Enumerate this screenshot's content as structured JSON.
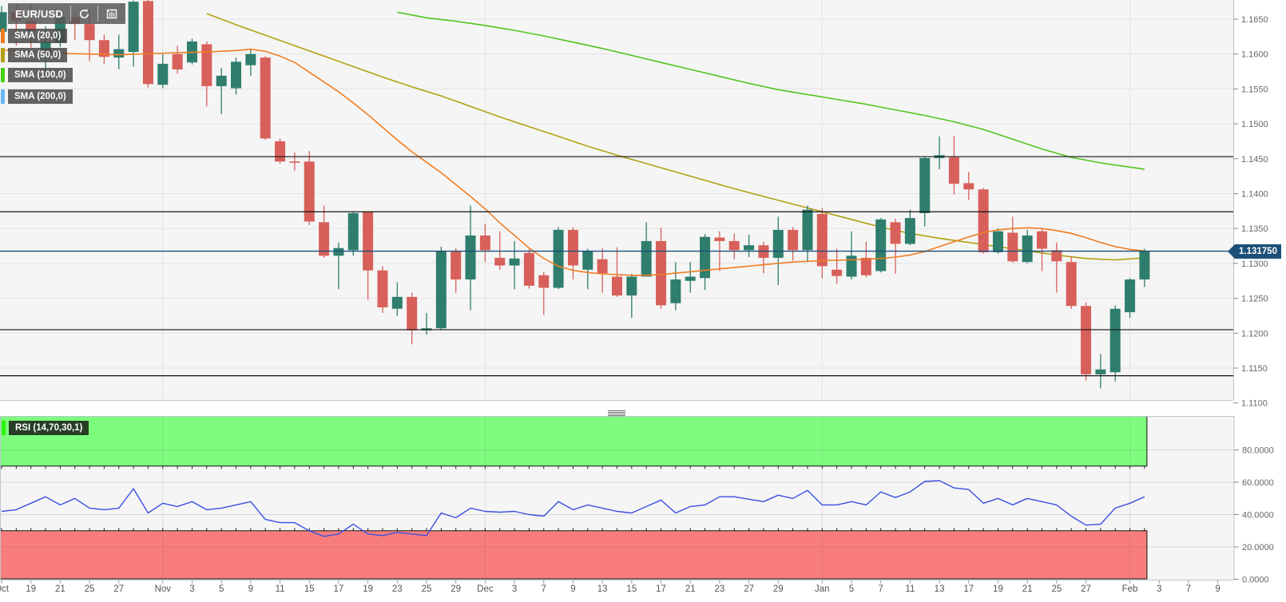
{
  "toolbar": {
    "symbol": "EUR/USD",
    "icons": [
      "refresh-icon",
      "history-icon"
    ]
  },
  "legend": [
    {
      "label": "SMA (20,0)",
      "color": "#f07d23"
    },
    {
      "label": "SMA (50,0)",
      "color": "#b3a012"
    },
    {
      "label": "SMA (100,0)",
      "color": "#46cf10"
    },
    {
      "label": "SMA (200,0)",
      "color": "#68b6f2"
    }
  ],
  "rsi_panel": {
    "label": "RSI (14,70,30,1)",
    "accent_color": "#2bf406",
    "overbought": 70,
    "oversold": 30,
    "axis_ticks": [
      "80.0000",
      "60.0000",
      "40.0000",
      "20.0000",
      "0.0000"
    ],
    "axis_tick_values": [
      80,
      60,
      40,
      20,
      0
    ]
  },
  "price_axis": {
    "ticks": [
      "1.1650",
      "1.1600",
      "1.1550",
      "1.1500",
      "1.1450",
      "1.1400",
      "1.1350",
      "1.1300",
      "1.1250",
      "1.1200",
      "1.1150",
      "1.1100"
    ],
    "current_price": "1.131750"
  },
  "colors": {
    "up": "#2f7e6d",
    "down": "#d8605a",
    "sma20": "#f07d23",
    "sma50": "#b3a012",
    "sma100": "#53c41e",
    "sma200": "#68b6f2",
    "level_line": "#111111",
    "price_line": "#1b4f77",
    "badge_bg": "#1b4f77",
    "rsi_line": "#3b4fe0",
    "rsi_overbought_fill": "#7efc7d",
    "rsi_oversold_fill": "#f97d7c",
    "plot_bg": "#f5f5f5",
    "grid": "#e4e4e8",
    "panel_border": "#bcc4cf",
    "axis_text": "#666666"
  },
  "chart_data": {
    "type": "candlestick",
    "symbol": "EUR/USD",
    "price_levels": [
      1.1453,
      1.1374,
      1.1205,
      1.1139
    ],
    "current_price": 1.13175,
    "price_axis_range": [
      1.165,
      1.11
    ],
    "month_start_indices": [
      11,
      33,
      56,
      77
    ],
    "date_labels": [
      {
        "i": 0,
        "t": "Oct"
      },
      {
        "i": 2,
        "t": "19"
      },
      {
        "i": 4,
        "t": "21"
      },
      {
        "i": 6,
        "t": "25"
      },
      {
        "i": 8,
        "t": "27"
      },
      {
        "i": 11,
        "t": "Nov"
      },
      {
        "i": 13,
        "t": "3"
      },
      {
        "i": 15,
        "t": "5"
      },
      {
        "i": 17,
        "t": "9"
      },
      {
        "i": 19,
        "t": "11"
      },
      {
        "i": 21,
        "t": "15"
      },
      {
        "i": 23,
        "t": "17"
      },
      {
        "i": 25,
        "t": "19"
      },
      {
        "i": 27,
        "t": "23"
      },
      {
        "i": 29,
        "t": "25"
      },
      {
        "i": 31,
        "t": "29"
      },
      {
        "i": 33,
        "t": "Dec"
      },
      {
        "i": 35,
        "t": "3"
      },
      {
        "i": 37,
        "t": "7"
      },
      {
        "i": 39,
        "t": "9"
      },
      {
        "i": 41,
        "t": "13"
      },
      {
        "i": 43,
        "t": "15"
      },
      {
        "i": 45,
        "t": "17"
      },
      {
        "i": 47,
        "t": "21"
      },
      {
        "i": 49,
        "t": "23"
      },
      {
        "i": 51,
        "t": "27"
      },
      {
        "i": 53,
        "t": "29"
      },
      {
        "i": 56,
        "t": "Jan"
      },
      {
        "i": 58,
        "t": "5"
      },
      {
        "i": 60,
        "t": "7"
      },
      {
        "i": 62,
        "t": "11"
      },
      {
        "i": 64,
        "t": "13"
      },
      {
        "i": 66,
        "t": "17"
      },
      {
        "i": 68,
        "t": "19"
      },
      {
        "i": 70,
        "t": "21"
      },
      {
        "i": 72,
        "t": "25"
      },
      {
        "i": 74,
        "t": "27"
      },
      {
        "i": 77,
        "t": "Feb"
      },
      {
        "i": 79,
        "t": "3"
      },
      {
        "i": 81,
        "t": "7"
      },
      {
        "i": 83,
        "t": "9"
      }
    ],
    "candles": [
      {
        "d": "Oct 15",
        "o": 1.1632,
        "h": 1.1669,
        "l": 1.1616,
        "c": 1.166
      },
      {
        "d": "Oct 18",
        "o": 1.166,
        "h": 1.1671,
        "l": 1.1612,
        "c": 1.1648
      },
      {
        "d": "Oct 19",
        "o": 1.1648,
        "h": 1.167,
        "l": 1.1609,
        "c": 1.1633
      },
      {
        "d": "Oct 20",
        "o": 1.16,
        "h": 1.164,
        "l": 1.1566,
        "c": 1.1617
      },
      {
        "d": "Oct 21",
        "o": 1.1617,
        "h": 1.1659,
        "l": 1.161,
        "c": 1.1653
      },
      {
        "d": "Oct 22",
        "o": 1.1653,
        "h": 1.1661,
        "l": 1.162,
        "c": 1.1643
      },
      {
        "d": "Oct 25",
        "o": 1.1643,
        "h": 1.1663,
        "l": 1.159,
        "c": 1.162
      },
      {
        "d": "Oct 26",
        "o": 1.162,
        "h": 1.1628,
        "l": 1.1586,
        "c": 1.1596
      },
      {
        "d": "Oct 27",
        "o": 1.1595,
        "h": 1.1628,
        "l": 1.1578,
        "c": 1.1607
      },
      {
        "d": "Oct 28",
        "o": 1.1603,
        "h": 1.1677,
        "l": 1.1582,
        "c": 1.1675
      },
      {
        "d": "Oct 29",
        "o": 1.1676,
        "h": 1.1686,
        "l": 1.1552,
        "c": 1.1557
      },
      {
        "d": "Nov 1",
        "o": 1.1556,
        "h": 1.16,
        "l": 1.1551,
        "c": 1.1586
      },
      {
        "d": "Nov 2",
        "o": 1.16,
        "h": 1.1612,
        "l": 1.1572,
        "c": 1.1578
      },
      {
        "d": "Nov 3",
        "o": 1.1588,
        "h": 1.1622,
        "l": 1.1585,
        "c": 1.1618
      },
      {
        "d": "Nov 4",
        "o": 1.1614,
        "h": 1.1618,
        "l": 1.1525,
        "c": 1.1554
      },
      {
        "d": "Nov 5",
        "o": 1.1554,
        "h": 1.158,
        "l": 1.1514,
        "c": 1.1569
      },
      {
        "d": "Nov 8",
        "o": 1.1551,
        "h": 1.1595,
        "l": 1.1542,
        "c": 1.1589
      },
      {
        "d": "Nov 9",
        "o": 1.1584,
        "h": 1.1607,
        "l": 1.1569,
        "c": 1.16
      },
      {
        "d": "Nov 10",
        "o": 1.1595,
        "h": 1.1597,
        "l": 1.1477,
        "c": 1.1479
      },
      {
        "d": "Nov 11",
        "o": 1.1475,
        "h": 1.1479,
        "l": 1.1443,
        "c": 1.1446
      },
      {
        "d": "Nov 12",
        "o": 1.1446,
        "h": 1.1459,
        "l": 1.1433,
        "c": 1.1445
      },
      {
        "d": "Nov 15",
        "o": 1.1446,
        "h": 1.1461,
        "l": 1.1355,
        "c": 1.136
      },
      {
        "d": "Nov 16",
        "o": 1.1359,
        "h": 1.1383,
        "l": 1.1308,
        "c": 1.1311
      },
      {
        "d": "Nov 17",
        "o": 1.1311,
        "h": 1.133,
        "l": 1.1263,
        "c": 1.1322
      },
      {
        "d": "Nov 18",
        "o": 1.1319,
        "h": 1.1374,
        "l": 1.1311,
        "c": 1.1372
      },
      {
        "d": "Nov 19",
        "o": 1.1374,
        "h": 1.1374,
        "l": 1.1248,
        "c": 1.129
      },
      {
        "d": "Nov 22",
        "o": 1.129,
        "h": 1.1296,
        "l": 1.1229,
        "c": 1.1237
      },
      {
        "d": "Nov 23",
        "o": 1.1235,
        "h": 1.1273,
        "l": 1.1225,
        "c": 1.1252
      },
      {
        "d": "Nov 24",
        "o": 1.1252,
        "h": 1.1258,
        "l": 1.1184,
        "c": 1.1204
      },
      {
        "d": "Nov 25",
        "o": 1.1204,
        "h": 1.1229,
        "l": 1.1198,
        "c": 1.1207
      },
      {
        "d": "Nov 26",
        "o": 1.1207,
        "h": 1.1324,
        "l": 1.1204,
        "c": 1.1317
      },
      {
        "d": "Nov 29",
        "o": 1.1317,
        "h": 1.1322,
        "l": 1.1258,
        "c": 1.1277
      },
      {
        "d": "Nov 30",
        "o": 1.1277,
        "h": 1.1383,
        "l": 1.1233,
        "c": 1.134
      },
      {
        "d": "Dec 1",
        "o": 1.134,
        "h": 1.1357,
        "l": 1.1302,
        "c": 1.1319
      },
      {
        "d": "Dec 2",
        "o": 1.1308,
        "h": 1.1346,
        "l": 1.1291,
        "c": 1.1297
      },
      {
        "d": "Dec 3",
        "o": 1.1297,
        "h": 1.1332,
        "l": 1.1263,
        "c": 1.1307
      },
      {
        "d": "Dec 6",
        "o": 1.1315,
        "h": 1.132,
        "l": 1.1264,
        "c": 1.1268
      },
      {
        "d": "Dec 7",
        "o": 1.1283,
        "h": 1.1288,
        "l": 1.1226,
        "c": 1.1265
      },
      {
        "d": "Dec 8",
        "o": 1.1265,
        "h": 1.1352,
        "l": 1.1263,
        "c": 1.1348
      },
      {
        "d": "Dec 9",
        "o": 1.1348,
        "h": 1.1352,
        "l": 1.1277,
        "c": 1.1297
      },
      {
        "d": "Dec 10",
        "o": 1.1291,
        "h": 1.1321,
        "l": 1.1263,
        "c": 1.1317
      },
      {
        "d": "Dec 13",
        "o": 1.1306,
        "h": 1.1322,
        "l": 1.1258,
        "c": 1.1286
      },
      {
        "d": "Dec 14",
        "o": 1.1281,
        "h": 1.1323,
        "l": 1.1252,
        "c": 1.1254
      },
      {
        "d": "Dec 15",
        "o": 1.1254,
        "h": 1.1285,
        "l": 1.1222,
        "c": 1.1281
      },
      {
        "d": "Dec 16",
        "o": 1.1281,
        "h": 1.1359,
        "l": 1.1281,
        "c": 1.1332
      },
      {
        "d": "Dec 17",
        "o": 1.1332,
        "h": 1.1351,
        "l": 1.1235,
        "c": 1.124
      },
      {
        "d": "Dec 20",
        "o": 1.1243,
        "h": 1.1302,
        "l": 1.1233,
        "c": 1.1277
      },
      {
        "d": "Dec 21",
        "o": 1.1275,
        "h": 1.1302,
        "l": 1.1258,
        "c": 1.1281
      },
      {
        "d": "Dec 22",
        "o": 1.1279,
        "h": 1.1342,
        "l": 1.1262,
        "c": 1.1338
      },
      {
        "d": "Dec 23",
        "o": 1.1337,
        "h": 1.1346,
        "l": 1.1289,
        "c": 1.1332
      },
      {
        "d": "Dec 24",
        "o": 1.1332,
        "h": 1.1343,
        "l": 1.1306,
        "c": 1.1319
      },
      {
        "d": "Dec 27",
        "o": 1.1319,
        "h": 1.1341,
        "l": 1.1309,
        "c": 1.1326
      },
      {
        "d": "Dec 28",
        "o": 1.1326,
        "h": 1.1331,
        "l": 1.1286,
        "c": 1.1308
      },
      {
        "d": "Dec 29",
        "o": 1.1308,
        "h": 1.1367,
        "l": 1.1269,
        "c": 1.1348
      },
      {
        "d": "Dec 30",
        "o": 1.1348,
        "h": 1.1352,
        "l": 1.1304,
        "c": 1.1319
      },
      {
        "d": "Dec 31",
        "o": 1.1319,
        "h": 1.1383,
        "l": 1.1302,
        "c": 1.1377
      },
      {
        "d": "Jan 3",
        "o": 1.1371,
        "h": 1.1379,
        "l": 1.1279,
        "c": 1.1296
      },
      {
        "d": "Jan 4",
        "o": 1.1291,
        "h": 1.1321,
        "l": 1.1271,
        "c": 1.1282
      },
      {
        "d": "Jan 5",
        "o": 1.1281,
        "h": 1.1346,
        "l": 1.1277,
        "c": 1.1311
      },
      {
        "d": "Jan 6",
        "o": 1.1308,
        "h": 1.1331,
        "l": 1.128,
        "c": 1.1283
      },
      {
        "d": "Jan 7",
        "o": 1.1289,
        "h": 1.1365,
        "l": 1.1287,
        "c": 1.1363
      },
      {
        "d": "Jan 10",
        "o": 1.1359,
        "h": 1.1364,
        "l": 1.1285,
        "c": 1.1328
      },
      {
        "d": "Jan 11",
        "o": 1.1328,
        "h": 1.1377,
        "l": 1.1326,
        "c": 1.1365
      },
      {
        "d": "Jan 12",
        "o": 1.1372,
        "h": 1.1453,
        "l": 1.1353,
        "c": 1.1451
      },
      {
        "d": "Jan 13",
        "o": 1.1451,
        "h": 1.1482,
        "l": 1.1435,
        "c": 1.1455
      },
      {
        "d": "Jan 14",
        "o": 1.1452,
        "h": 1.1483,
        "l": 1.1399,
        "c": 1.1414
      },
      {
        "d": "Jan 17",
        "o": 1.1415,
        "h": 1.1431,
        "l": 1.1391,
        "c": 1.1406
      },
      {
        "d": "Jan 18",
        "o": 1.1406,
        "h": 1.1408,
        "l": 1.1314,
        "c": 1.1316
      },
      {
        "d": "Jan 19",
        "o": 1.1316,
        "h": 1.135,
        "l": 1.1314,
        "c": 1.1346
      },
      {
        "d": "Jan 20",
        "o": 1.1344,
        "h": 1.1367,
        "l": 1.1301,
        "c": 1.1303
      },
      {
        "d": "Jan 21",
        "o": 1.1302,
        "h": 1.1348,
        "l": 1.13,
        "c": 1.134
      },
      {
        "d": "Jan 24",
        "o": 1.1346,
        "h": 1.135,
        "l": 1.1289,
        "c": 1.1321
      },
      {
        "d": "Jan 25",
        "o": 1.1319,
        "h": 1.133,
        "l": 1.1258,
        "c": 1.1303
      },
      {
        "d": "Jan 26",
        "o": 1.1302,
        "h": 1.131,
        "l": 1.1235,
        "c": 1.1239
      },
      {
        "d": "Jan 27",
        "o": 1.1239,
        "h": 1.1244,
        "l": 1.1132,
        "c": 1.1141
      },
      {
        "d": "Jan 28",
        "o": 1.1141,
        "h": 1.117,
        "l": 1.1121,
        "c": 1.1148
      },
      {
        "d": "Jan 31",
        "o": 1.1144,
        "h": 1.124,
        "l": 1.1131,
        "c": 1.1235
      },
      {
        "d": "Feb 1",
        "o": 1.123,
        "h": 1.1279,
        "l": 1.1222,
        "c": 1.1277
      },
      {
        "d": "Feb 2",
        "o": 1.1277,
        "h": 1.1321,
        "l": 1.1266,
        "c": 1.13175
      }
    ],
    "rsi": [
      42,
      43,
      47,
      51,
      46,
      50,
      44,
      43,
      44,
      56,
      41,
      47,
      45,
      48,
      43,
      44,
      46,
      48,
      37,
      35,
      35,
      30,
      26.5,
      28,
      34,
      28,
      27,
      29,
      28,
      27,
      41,
      38,
      44,
      42,
      41.5,
      42,
      40,
      39,
      48,
      43,
      46,
      44,
      42,
      41,
      45,
      49,
      41,
      45,
      46,
      51,
      51,
      49.5,
      48,
      52,
      50,
      55,
      46,
      46,
      48,
      46,
      54,
      50.5,
      54,
      60.5,
      61,
      56.5,
      55.5,
      47,
      50,
      46,
      50,
      48,
      46,
      39,
      33.5,
      34,
      44,
      47,
      51
    ],
    "sma20": [
      [
        0,
        1.1606
      ],
      [
        4,
        1.1601
      ],
      [
        8,
        1.1599
      ],
      [
        12,
        1.1602
      ],
      [
        14,
        1.1603
      ],
      [
        16,
        1.1605
      ],
      [
        17,
        1.1607
      ],
      [
        18,
        1.1604
      ],
      [
        19,
        1.1597
      ],
      [
        20,
        1.1588
      ],
      [
        21,
        1.1574
      ],
      [
        22,
        1.156
      ],
      [
        23,
        1.1546
      ],
      [
        24,
        1.153
      ],
      [
        25,
        1.1513
      ],
      [
        26,
        1.1495
      ],
      [
        27,
        1.1477
      ],
      [
        28,
        1.146
      ],
      [
        29,
        1.1445
      ],
      [
        30,
        1.143
      ],
      [
        31,
        1.1413
      ],
      [
        32,
        1.1396
      ],
      [
        33,
        1.1378
      ],
      [
        34,
        1.1358
      ],
      [
        35,
        1.134
      ],
      [
        36,
        1.1322
      ],
      [
        37,
        1.1307
      ],
      [
        38,
        1.1296
      ],
      [
        39,
        1.129
      ],
      [
        40,
        1.1287
      ],
      [
        41,
        1.1285
      ],
      [
        42,
        1.1284
      ],
      [
        43,
        1.1283
      ],
      [
        44,
        1.1283
      ],
      [
        45,
        1.1284
      ],
      [
        46,
        1.1286
      ],
      [
        47,
        1.1288
      ],
      [
        48,
        1.129
      ],
      [
        50,
        1.1294
      ],
      [
        52,
        1.1298
      ],
      [
        54,
        1.1302
      ],
      [
        56,
        1.1304
      ],
      [
        58,
        1.1305
      ],
      [
        60,
        1.1307
      ],
      [
        61,
        1.1309
      ],
      [
        62,
        1.1312
      ],
      [
        63,
        1.1317
      ],
      [
        64,
        1.1324
      ],
      [
        65,
        1.1331
      ],
      [
        66,
        1.1338
      ],
      [
        67,
        1.1344
      ],
      [
        68,
        1.1348
      ],
      [
        69,
        1.135
      ],
      [
        70,
        1.1351
      ],
      [
        71,
        1.135
      ],
      [
        72,
        1.1347
      ],
      [
        73,
        1.1343
      ],
      [
        74,
        1.1337
      ],
      [
        75,
        1.133
      ],
      [
        76,
        1.1324
      ],
      [
        77,
        1.132
      ],
      [
        78,
        1.1318
      ]
    ],
    "sma50": [
      [
        14,
        1.1658
      ],
      [
        16,
        1.1642
      ],
      [
        18,
        1.1627
      ],
      [
        20,
        1.1612
      ],
      [
        22,
        1.1597
      ],
      [
        24,
        1.1582
      ],
      [
        26,
        1.1567
      ],
      [
        28,
        1.1553
      ],
      [
        30,
        1.154
      ],
      [
        32,
        1.1525
      ],
      [
        34,
        1.151
      ],
      [
        36,
        1.1496
      ],
      [
        38,
        1.1482
      ],
      [
        40,
        1.1468
      ],
      [
        42,
        1.1455
      ],
      [
        44,
        1.1443
      ],
      [
        46,
        1.1431
      ],
      [
        48,
        1.1419
      ],
      [
        50,
        1.1407
      ],
      [
        52,
        1.1396
      ],
      [
        54,
        1.1385
      ],
      [
        56,
        1.1374
      ],
      [
        58,
        1.1363
      ],
      [
        60,
        1.1352
      ],
      [
        62,
        1.1343
      ],
      [
        64,
        1.1336
      ],
      [
        66,
        1.133
      ],
      [
        68,
        1.1324
      ],
      [
        70,
        1.1318
      ],
      [
        72,
        1.1312
      ],
      [
        74,
        1.1307
      ],
      [
        76,
        1.1305
      ],
      [
        78,
        1.1308
      ]
    ],
    "sma100": [
      [
        27,
        1.166
      ],
      [
        29,
        1.1652
      ],
      [
        31,
        1.1647
      ],
      [
        33,
        1.1641
      ],
      [
        35,
        1.1634
      ],
      [
        37,
        1.1626
      ],
      [
        39,
        1.1617
      ],
      [
        41,
        1.1608
      ],
      [
        43,
        1.1598
      ],
      [
        45,
        1.1588
      ],
      [
        47,
        1.1578
      ],
      [
        49,
        1.1568
      ],
      [
        51,
        1.1558
      ],
      [
        53,
        1.1549
      ],
      [
        55,
        1.1542
      ],
      [
        57,
        1.1535
      ],
      [
        59,
        1.1528
      ],
      [
        61,
        1.152
      ],
      [
        63,
        1.1512
      ],
      [
        65,
        1.1503
      ],
      [
        67,
        1.1492
      ],
      [
        69,
        1.1478
      ],
      [
        71,
        1.1464
      ],
      [
        73,
        1.1452
      ],
      [
        75,
        1.1444
      ],
      [
        77,
        1.1438
      ],
      [
        78,
        1.1435
      ]
    ]
  }
}
